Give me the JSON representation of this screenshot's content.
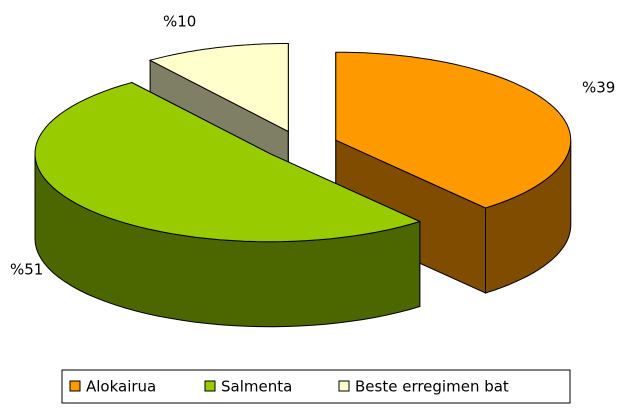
{
  "chart_data": {
    "type": "pie",
    "categories": [
      "Alokairua",
      "Salmenta",
      "Beste erregimen bat"
    ],
    "values": [
      39,
      51,
      10
    ],
    "value_labels": [
      "%39",
      "%51",
      "%10"
    ],
    "colors": [
      "#ff9900",
      "#99cc00",
      "#ffffcc"
    ],
    "legend": "bottom"
  }
}
